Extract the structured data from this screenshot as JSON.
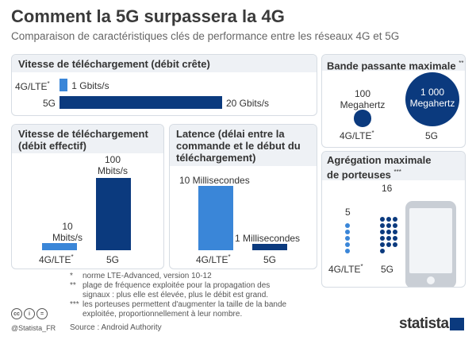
{
  "header": {
    "title": "Comment la 5G surpassera la 4G",
    "subtitle": "Comparaison de caractéristiques clés de performance entre les réseaux 4G et 5G"
  },
  "peak": {
    "title": "Vitesse de téléchargement (débit crête)",
    "label_4g": "4G/LTE",
    "mark_4g": "*",
    "label_5g": "5G",
    "value_4g": "1 Gbits/s",
    "value_5g": "20 Gbits/s"
  },
  "bandwidth": {
    "title": "Bande passante maximale",
    "mark": "**",
    "value_4g_num": "100",
    "value_4g_unit": "Megahertz",
    "value_5g_num": "1 000",
    "value_5g_unit": "Megahertz",
    "label_4g": "4G/LTE",
    "mark_4g": "*",
    "label_5g": "5G"
  },
  "effective": {
    "title": "Vitesse de téléchargement (débit effectif)",
    "value_4g_num": "10",
    "value_4g_unit": "Mbits/s",
    "value_5g_num": "100",
    "value_5g_unit": "Mbits/s",
    "label_4g": "4G/LTE",
    "mark_4g": "*",
    "label_5g": "5G"
  },
  "latency": {
    "title": "Latence (délai entre la commande et le début du téléchargement)",
    "value_4g": "10 Millisecondes",
    "value_5g": "1 Millisecondes",
    "label_4g": "4G/LTE",
    "mark_4g": "*",
    "label_5g": "5G"
  },
  "carriers": {
    "title": "Agrégation maximale de porteuses",
    "mark": "***",
    "value_4g": "5",
    "value_5g": "16",
    "label_4g": "4G/LTE",
    "mark_4g": "*",
    "label_5g": "5G"
  },
  "notes": [
    {
      "sym": "*",
      "text": "norme LTE-Advanced, version 10-12"
    },
    {
      "sym": "**",
      "text": "plage de fréquence exploitée pour la propagation des signaux : plus elle est élevée, plus le débit est grand."
    },
    {
      "sym": "***",
      "text": "les porteuses permettent d'augmenter la taille de la bande exploitée, proportionnellement à leur nombre."
    }
  ],
  "source": "Source : Android Authority",
  "footer": {
    "handle": "@Statista_FR",
    "brand": "statista",
    "cc_glyphs": [
      "cc",
      "i",
      "="
    ]
  },
  "colors": {
    "lte": "#3a86d8",
    "g5": "#0b3a7e",
    "panel_border": "#d6dce3",
    "panel_header": "#eef1f5"
  },
  "chart_data": [
    {
      "type": "bar",
      "title": "Vitesse de téléchargement (débit crête)",
      "categories": [
        "4G/LTE",
        "5G"
      ],
      "values": [
        1,
        20
      ],
      "unit": "Gbits/s",
      "orientation": "horizontal"
    },
    {
      "type": "scatter",
      "title": "Bande passante maximale",
      "categories": [
        "4G/LTE",
        "5G"
      ],
      "values": [
        100,
        1000
      ],
      "unit": "Megahertz",
      "encoding": "circle area"
    },
    {
      "type": "bar",
      "title": "Vitesse de téléchargement (débit effectif)",
      "categories": [
        "4G/LTE",
        "5G"
      ],
      "values": [
        10,
        100
      ],
      "unit": "Mbits/s"
    },
    {
      "type": "bar",
      "title": "Latence (délai entre la commande et le début du téléchargement)",
      "categories": [
        "4G/LTE",
        "5G"
      ],
      "values": [
        10,
        1
      ],
      "unit": "Millisecondes"
    },
    {
      "type": "scatter",
      "title": "Agrégation maximale de porteuses",
      "categories": [
        "4G/LTE",
        "5G"
      ],
      "values": [
        5,
        16
      ],
      "encoding": "dot count"
    }
  ]
}
